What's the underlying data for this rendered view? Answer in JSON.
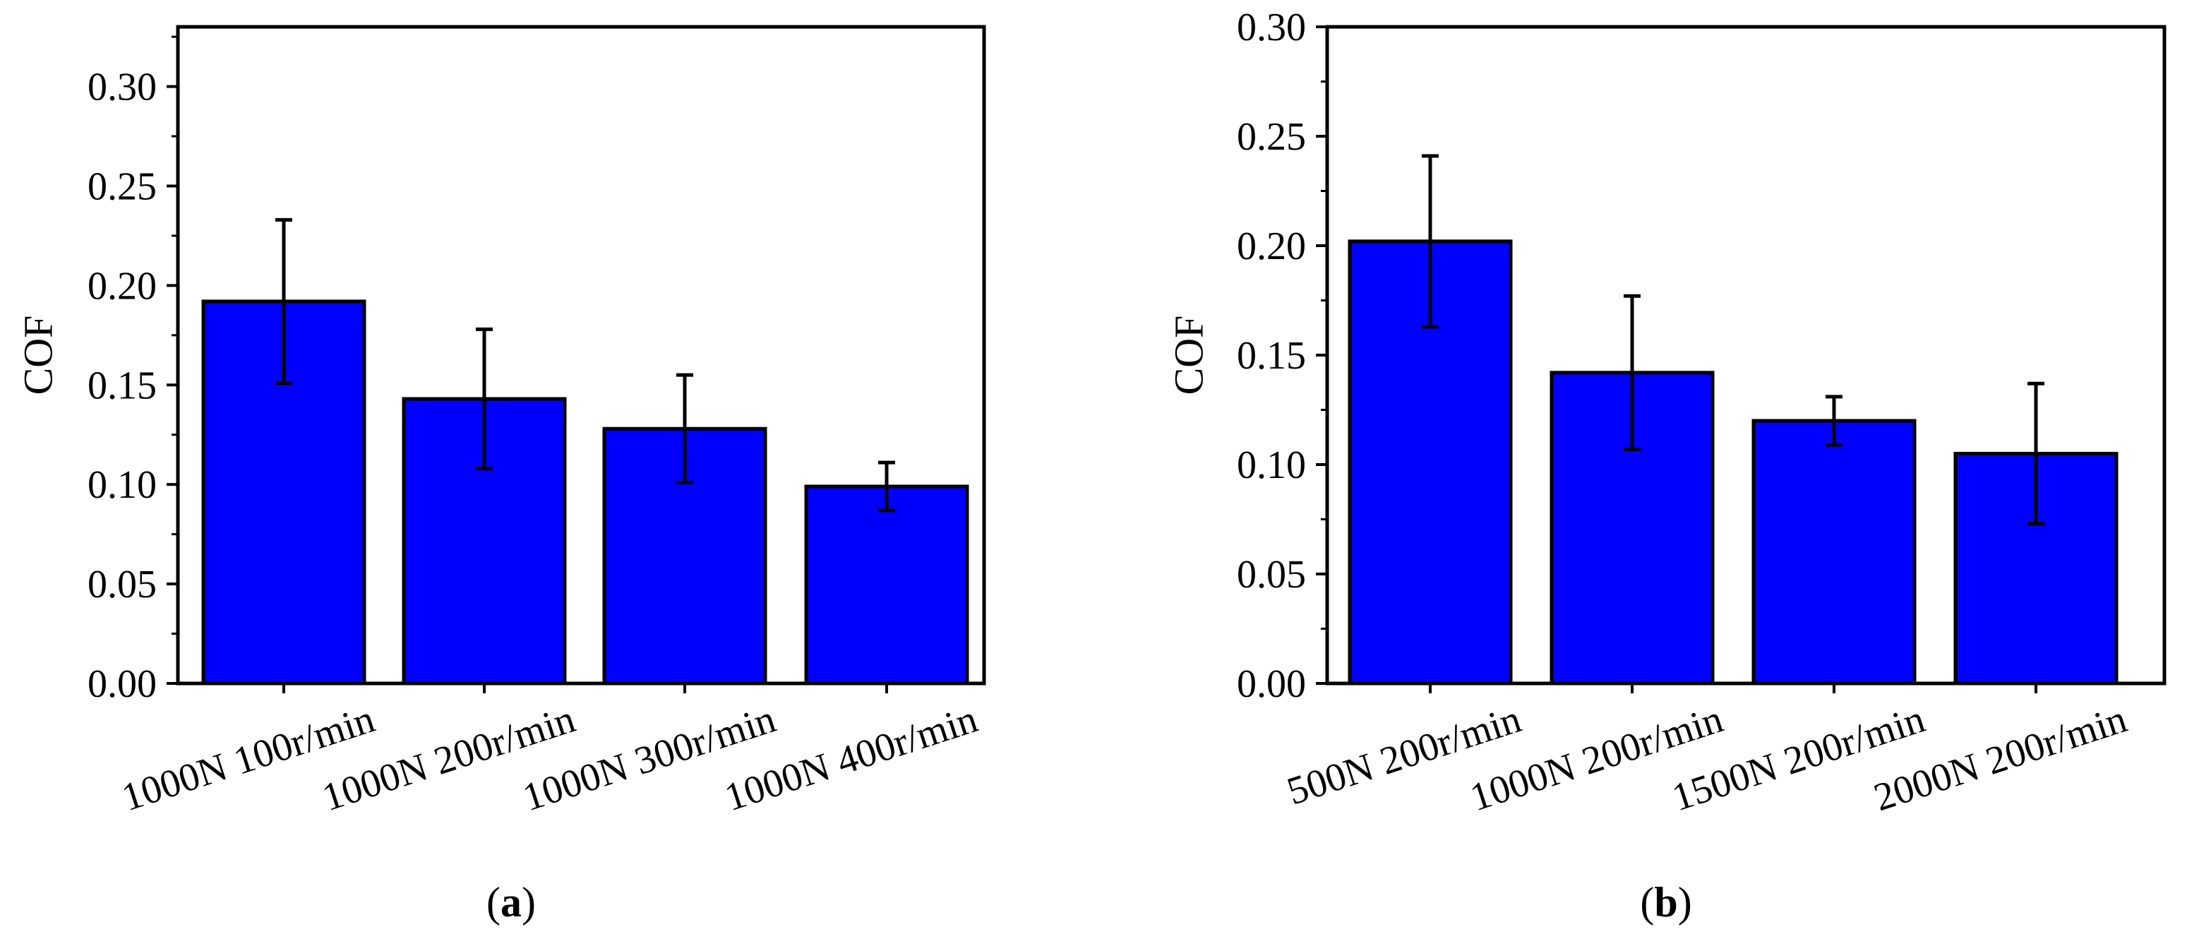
{
  "colors": {
    "bar": "#0000ff",
    "axis": "#000000",
    "background": "#ffffff"
  },
  "chart_data": [
    {
      "type": "bar",
      "panel_label": {
        "open": "(",
        "letter": "a",
        "close": ")"
      },
      "ylabel": "COF",
      "xlabel": "",
      "ylim": [
        0,
        0.33
      ],
      "yticks": [
        "0.00",
        "0.05",
        "0.10",
        "0.15",
        "0.20",
        "0.25",
        "0.30"
      ],
      "ytick_values": [
        0,
        0.05,
        0.1,
        0.15,
        0.2,
        0.25,
        0.3
      ],
      "categories": [
        "1000N 100r/min",
        "1000N 200r/min",
        "1000N 300r/min",
        "1000N 400r/min"
      ],
      "values": [
        0.192,
        0.143,
        0.128,
        0.099
      ],
      "errors": [
        0.041,
        0.035,
        0.027,
        0.012
      ],
      "grid": false
    },
    {
      "type": "bar",
      "panel_label": {
        "open": "(",
        "letter": "b",
        "close": ")"
      },
      "ylabel": "COF",
      "xlabel": "",
      "ylim": [
        0,
        0.3
      ],
      "yticks": [
        "0.00",
        "0.05",
        "0.10",
        "0.15",
        "0.20",
        "0.25",
        "0.30"
      ],
      "ytick_values": [
        0,
        0.05,
        0.1,
        0.15,
        0.2,
        0.25,
        0.3
      ],
      "categories": [
        "500N 200r/min",
        "1000N 200r/min",
        "1500N 200r/min",
        "2000N 200r/min"
      ],
      "values": [
        0.202,
        0.142,
        0.12,
        0.105
      ],
      "errors": [
        0.039,
        0.035,
        0.011,
        0.032
      ],
      "grid": false
    }
  ]
}
